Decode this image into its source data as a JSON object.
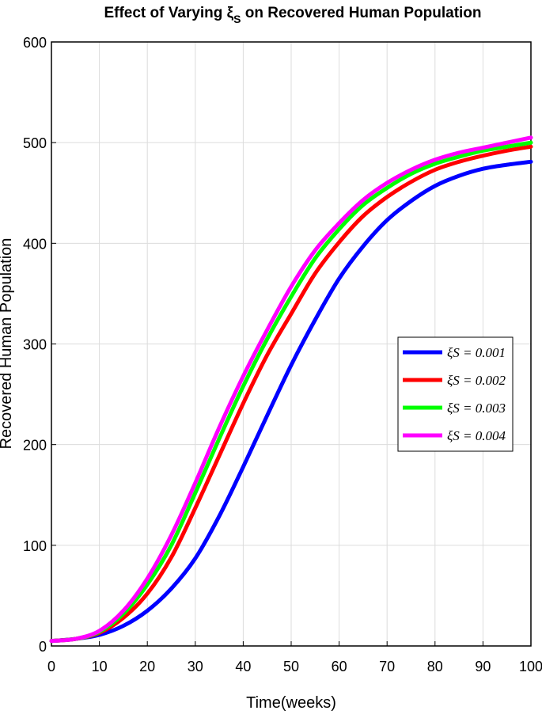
{
  "chart_data": {
    "type": "line",
    "title": "Effect of Varying ξ",
    "title_subscript": "S",
    "title_rest": " on Recovered Human Population",
    "xlabel": "Time(weeks)",
    "ylabel": "Recovered Human Population",
    "xlim": [
      0,
      100
    ],
    "ylim": [
      0,
      600
    ],
    "xticks": [
      0,
      10,
      20,
      30,
      40,
      50,
      60,
      70,
      80,
      90,
      100
    ],
    "yticks": [
      0,
      100,
      200,
      300,
      400,
      500,
      600
    ],
    "grid": true,
    "legend_position": "right-middle",
    "x": [
      0,
      5,
      10,
      15,
      20,
      25,
      30,
      35,
      40,
      45,
      50,
      55,
      60,
      65,
      70,
      75,
      80,
      85,
      90,
      95,
      100
    ],
    "series": [
      {
        "name": "ξS = 0.001",
        "color": "#0000ff",
        "values": [
          5,
          7,
          11,
          20,
          35,
          57,
          87,
          129,
          178,
          229,
          279,
          324,
          365,
          397,
          423,
          442,
          457,
          467,
          474,
          478,
          481
        ]
      },
      {
        "name": "ξS = 0.002",
        "color": "#ff0000",
        "values": [
          5,
          7,
          13,
          28,
          52,
          88,
          137,
          189,
          241,
          289,
          330,
          370,
          401,
          427,
          446,
          461,
          473,
          481,
          487,
          492,
          496
        ]
      },
      {
        "name": "ξS = 0.003",
        "color": "#00ff00",
        "values": [
          5,
          7,
          14,
          32,
          61,
          100,
          152,
          206,
          258,
          305,
          347,
          385,
          414,
          438,
          455,
          469,
          479,
          486,
          492,
          496,
          500
        ]
      },
      {
        "name": "ξS = 0.004",
        "color": "#ff00ff",
        "values": [
          5,
          7,
          15,
          35,
          67,
          110,
          162,
          217,
          268,
          314,
          357,
          393,
          420,
          443,
          460,
          473,
          483,
          490,
          495,
          500,
          505
        ]
      }
    ]
  }
}
